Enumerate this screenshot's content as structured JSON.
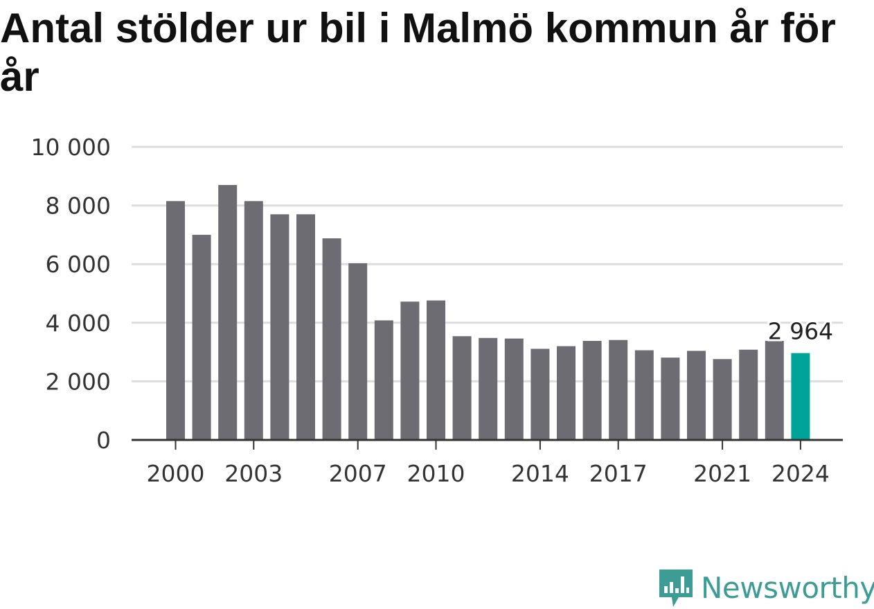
{
  "title": "Antal stölder ur bil i Malmö kommun år för år",
  "brand": {
    "name": "Newsworthy",
    "color": "#3d9c94"
  },
  "colors": {
    "bar": "#6d6c72",
    "highlight": "#00a398",
    "grid": "#dddddd",
    "axis": "#333333"
  },
  "chart_data": {
    "type": "bar",
    "title": "Antal stölder ur bil i Malmö kommun år för år",
    "xlabel": "",
    "ylabel": "",
    "categories": [
      2000,
      2001,
      2002,
      2003,
      2004,
      2005,
      2006,
      2007,
      2008,
      2009,
      2010,
      2011,
      2012,
      2013,
      2014,
      2015,
      2016,
      2017,
      2018,
      2019,
      2020,
      2021,
      2022,
      2023,
      2024
    ],
    "values": [
      8150,
      7000,
      8700,
      8150,
      7700,
      7700,
      6880,
      6030,
      4080,
      4720,
      4760,
      3540,
      3480,
      3460,
      3110,
      3200,
      3380,
      3410,
      3060,
      2810,
      3040,
      2760,
      3080,
      3380,
      2964
    ],
    "ylim": [
      0,
      10000
    ],
    "yticks": [
      0,
      2000,
      4000,
      6000,
      8000,
      10000
    ],
    "ytick_labels": [
      "0",
      "2 000",
      "4 000",
      "6 000",
      "8 000",
      "10 000"
    ],
    "xtick_labels": [
      "2000",
      "2003",
      "2007",
      "2010",
      "2014",
      "2017",
      "2021",
      "2024"
    ],
    "highlight": {
      "category": 2024,
      "label": "2 964"
    },
    "grid": true
  }
}
